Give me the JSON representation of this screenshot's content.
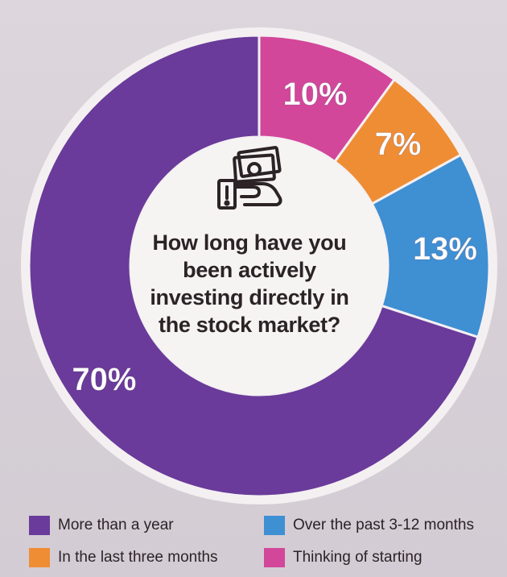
{
  "chart_data": {
    "type": "pie",
    "donut": true,
    "title": "How long have you been actively investing directly in the stock market?",
    "categories": [
      "Thinking of starting",
      "In the last three months",
      "Over the past 3-12 months",
      "More than a year"
    ],
    "values": [
      10,
      7,
      13,
      70
    ],
    "labels": [
      "10%",
      "7%",
      "13%",
      "70%"
    ],
    "colors": [
      "#d2479a",
      "#ef8d35",
      "#3f8fd3",
      "#6a3b9a"
    ],
    "legend": [
      {
        "label": "More than a year",
        "color": "#6a3b9a"
      },
      {
        "label": "Over the past 3-12 months",
        "color": "#3f8fd3"
      },
      {
        "label": "In the last three months",
        "color": "#ef8d35"
      },
      {
        "label": "Thinking of starting",
        "color": "#d2479a"
      }
    ],
    "legend_position": "bottom"
  },
  "center": {
    "icon": "money-hand-icon",
    "question_lines": [
      "How long have you",
      "been actively",
      "investing directly in",
      "the stock market?"
    ]
  }
}
